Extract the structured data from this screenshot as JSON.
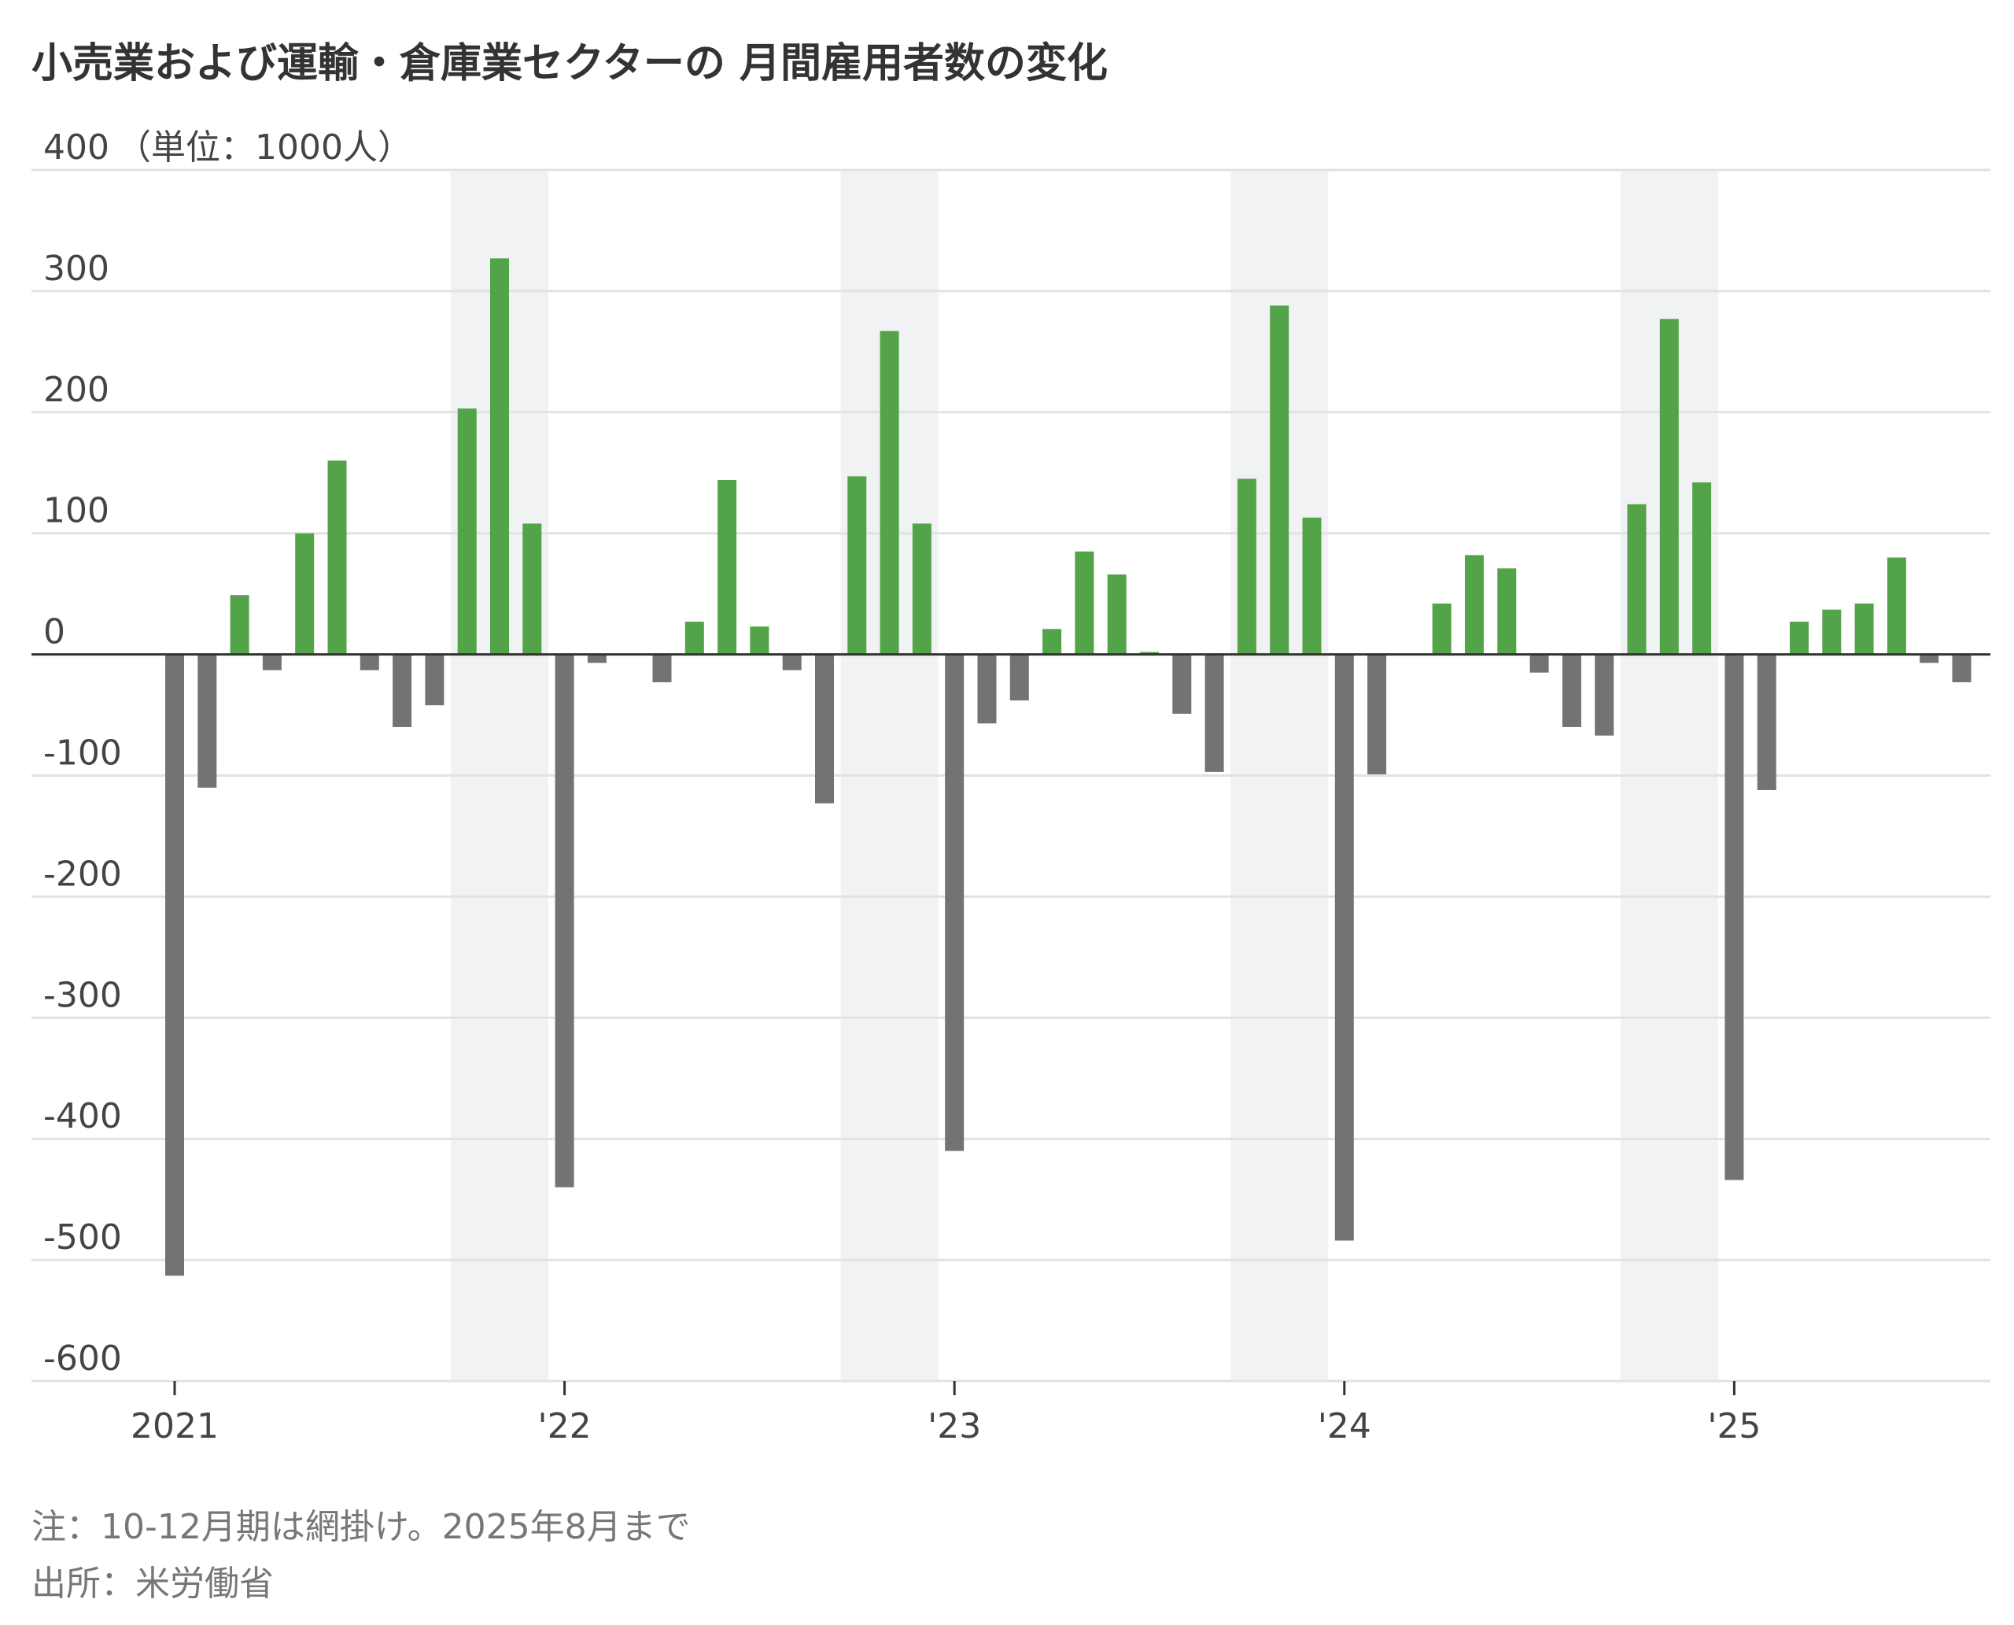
{
  "title": "小売業および運輸・倉庫業セクターの 月間雇用者数の変化",
  "notes": {
    "note": "注：10-12月期は網掛け。2025年8月まで",
    "source": "出所：米労働省"
  },
  "colors": {
    "positive": "#53a348",
    "negative": "#737373",
    "shade": "#f1f2f4",
    "grid": "#e2e2e2",
    "zero_line": "#333333",
    "text": "#444444"
  },
  "chart_data": {
    "type": "bar",
    "ylabel": "（単位：1000人）",
    "ylim": [
      -600,
      400
    ],
    "y_ticks": [
      400,
      300,
      200,
      100,
      0,
      -100,
      -200,
      -300,
      -400,
      -500,
      -600
    ],
    "x_tick_labels": [
      "2021",
      "'22",
      "'23",
      "'24",
      "'25"
    ],
    "shaded_periods": [
      "2021年10-12月",
      "2022年10-12月",
      "2023年10-12月",
      "2024年10-12月"
    ],
    "categories": [
      "2021-01",
      "2021-02",
      "2021-03",
      "2021-04",
      "2021-05",
      "2021-06",
      "2021-07",
      "2021-08",
      "2021-09",
      "2021-10",
      "2021-11",
      "2021-12",
      "2022-01",
      "2022-02",
      "2022-03",
      "2022-04",
      "2022-05",
      "2022-06",
      "2022-07",
      "2022-08",
      "2022-09",
      "2022-10",
      "2022-11",
      "2022-12",
      "2023-01",
      "2023-02",
      "2023-03",
      "2023-04",
      "2023-05",
      "2023-06",
      "2023-07",
      "2023-08",
      "2023-09",
      "2023-10",
      "2023-11",
      "2023-12",
      "2024-01",
      "2024-02",
      "2024-03",
      "2024-04",
      "2024-05",
      "2024-06",
      "2024-07",
      "2024-08",
      "2024-09",
      "2024-10",
      "2024-11",
      "2024-12",
      "2025-01",
      "2025-02",
      "2025-03",
      "2025-04",
      "2025-05",
      "2025-06",
      "2025-07",
      "2025-08"
    ],
    "values": [
      -513,
      -110,
      49,
      -13,
      100,
      160,
      -13,
      -60,
      -42,
      203,
      327,
      108,
      -440,
      -7,
      0,
      -23,
      27,
      144,
      23,
      -13,
      -123,
      147,
      267,
      108,
      -410,
      -57,
      -38,
      21,
      85,
      66,
      2,
      -49,
      -97,
      145,
      288,
      113,
      -484,
      -99,
      0,
      42,
      82,
      71,
      -15,
      -60,
      -67,
      124,
      277,
      142,
      -434,
      -112,
      27,
      37,
      42,
      80,
      -7,
      -23
    ]
  }
}
